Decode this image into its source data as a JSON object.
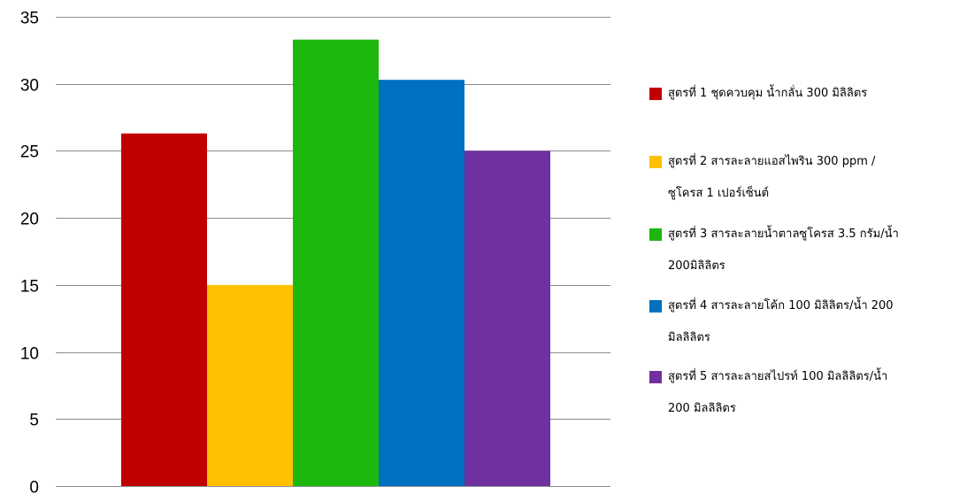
{
  "chart_data": {
    "type": "bar",
    "title": "",
    "xlabel": "",
    "ylabel": "",
    "ylim": [
      0,
      35
    ],
    "yticks": [
      0,
      5,
      10,
      15,
      20,
      25,
      30,
      35
    ],
    "grid": true,
    "legend_position": "right",
    "series": [
      {
        "name": "สูตรที่ 1 ชุดควบคุม น้ำกลั่น 300 มิลิลิตร",
        "value": 26.3,
        "color": "#C00000"
      },
      {
        "name": "สูตรที่ 2 สารละลายแอสไพริน 300 ppm / ซูโครส 1 เปอร์เซ็นต์",
        "value": 15,
        "color": "#FFC000"
      },
      {
        "name": "สูตรที่ 3 สารละลายน้ำตาลซูโครส 3.5 กรัม/น้ำ 200มิลิลิตร",
        "value": 33.3,
        "color": "#1DB80E"
      },
      {
        "name": "สูตรที่ 4 สารละลายโค้ก 100 มิลิลิตร/น้ำ 200 มิลลิลิตร",
        "value": 30.3,
        "color": "#0070C0"
      },
      {
        "name": "สูตรที่ 5 สารละลายสไปรท์ 100 มิลลิลิตร/น้ำ 200 มิลลิลิตร",
        "value": 25,
        "color": "#7030A0"
      }
    ]
  },
  "legend": {
    "items": [
      {
        "lines": [
          "สูตรที่ 1 ชุดควบคุม น้ำกลั่น 300 มิลิลิตร"
        ]
      },
      {
        "lines": [
          "สูตรที่ 2 สารละลายแอสไพริน 300 ppm /",
          "ซูโครส 1 เปอร์เซ็นต์"
        ]
      },
      {
        "lines": [
          "สูตรที่ 3 สารละลายน้ำตาลซูโครส 3.5 กรัม/น้ำ",
          "200มิลิลิตร"
        ]
      },
      {
        "lines": [
          "สูตรที่ 4 สารละลายโค้ก 100 มิลิลิตร/น้ำ 200",
          "มิลลิลิตร"
        ]
      },
      {
        "lines": [
          "สูตรที่ 5 สารละลายสไปรท์ 100 มิลลิลิตร/น้ำ",
          "200 มิลลิลิตร"
        ]
      }
    ]
  }
}
